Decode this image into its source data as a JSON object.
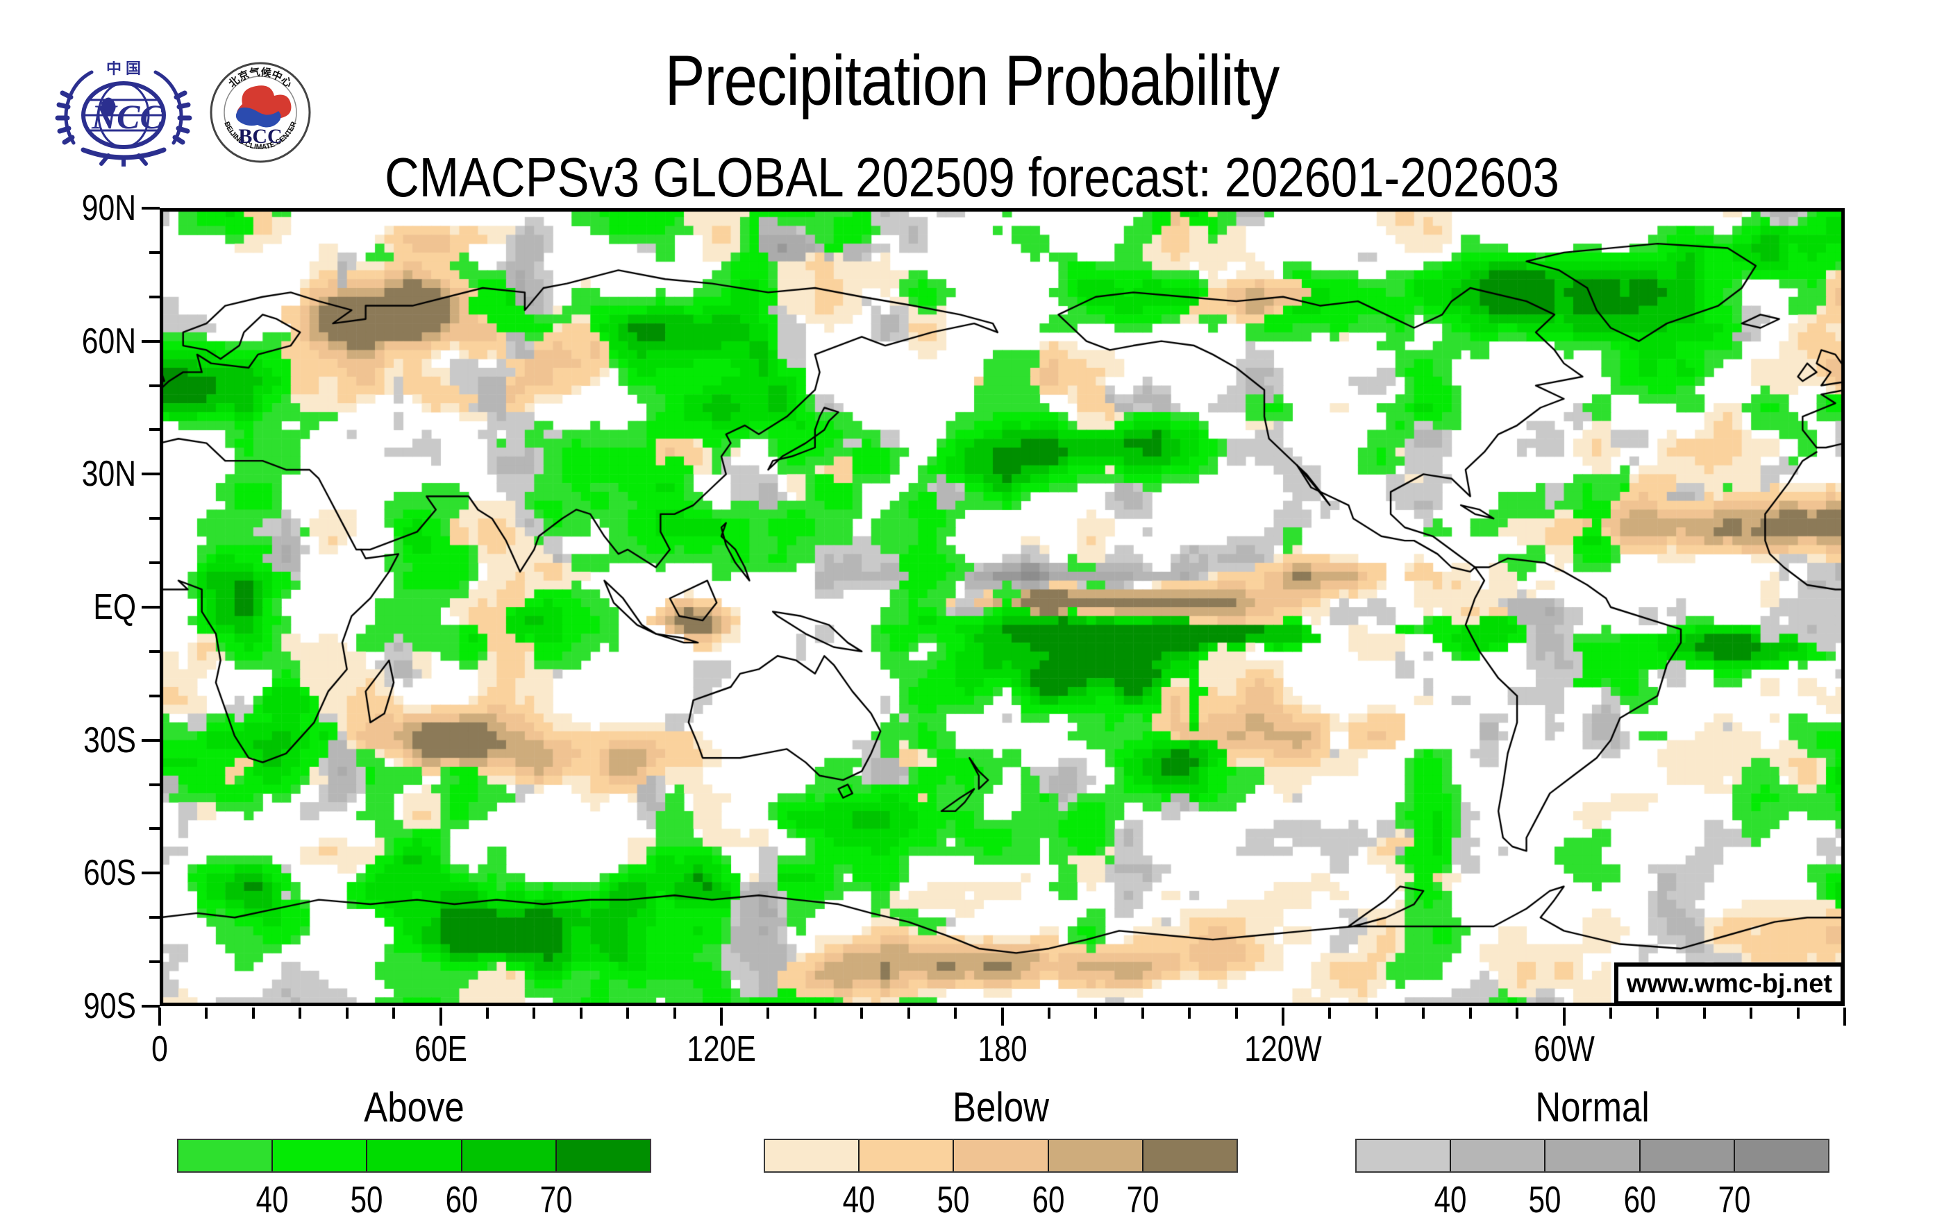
{
  "header": {
    "title": "Precipitation Probability",
    "subtitle": "CMACPSv3 GLOBAL 202509 forecast: 202601-202603"
  },
  "logos": {
    "ncc": {
      "country_text": "中 国",
      "acronym": "NCC"
    },
    "bcc": {
      "acronym": "BCC",
      "ring_top": "北京气候中心",
      "ring_bottom": "BEIJING CLIMATE CENTER"
    }
  },
  "map": {
    "watermark": "www.wmc-bj.net",
    "y_tick_labels": [
      "90N",
      "60N",
      "30N",
      "EQ",
      "30S",
      "60S",
      "90S"
    ],
    "x_tick_labels": [
      "0",
      "60E",
      "120E",
      "180",
      "120W",
      "60W"
    ],
    "background_color": "#FFFFFF",
    "coastline_color": "#000000"
  },
  "legend": {
    "sections": [
      {
        "title": "Above",
        "tick_labels": [
          "40",
          "50",
          "60",
          "70"
        ],
        "colors": [
          "#2EE02E",
          "#04EA04",
          "#00DC00",
          "#00C400",
          "#008F00"
        ]
      },
      {
        "title": "Below",
        "tick_labels": [
          "40",
          "50",
          "60",
          "70"
        ],
        "colors": [
          "#FAE9CC",
          "#FAD29D",
          "#F0C392",
          "#CEAC7C",
          "#8C7A58"
        ]
      },
      {
        "title": "Normal",
        "tick_labels": [
          "40",
          "50",
          "60",
          "70"
        ],
        "colors": [
          "#C9C9C9",
          "#B6B6B6",
          "#ABABAB",
          "#989898",
          "#8D8D8D"
        ]
      }
    ]
  },
  "chart_data": {
    "type": "heatmap",
    "title": "Precipitation Probability",
    "subtitle": "CMACPSv3 GLOBAL 202509 forecast: 202601-202603",
    "projection": "equirectangular global, lon 0 to 360, lat 90N to 90S",
    "x_ticks": [
      "0",
      "60E",
      "120E",
      "180",
      "120W",
      "60W"
    ],
    "y_ticks": [
      "90N",
      "60N",
      "30N",
      "EQ",
      "30S",
      "60S",
      "90S"
    ],
    "units": "probability (%)",
    "categories": [
      {
        "name": "Above",
        "bin_labels": [
          "<=40",
          "40-50",
          "50-60",
          "60-70",
          ">=70"
        ],
        "palette": [
          "#2EE02E",
          "#04EA04",
          "#00DC00",
          "#00C400",
          "#008F00"
        ]
      },
      {
        "name": "Below",
        "bin_labels": [
          "<=40",
          "40-50",
          "50-60",
          "60-70",
          ">=70"
        ],
        "palette": [
          "#FAE9CC",
          "#FAD29D",
          "#F0C392",
          "#CEAC7C",
          "#8C7A58"
        ]
      },
      {
        "name": "Normal",
        "bin_labels": [
          "<=40",
          "40-50",
          "50-60",
          "60-70",
          ">=70"
        ],
        "palette": [
          "#C9C9C9",
          "#B6B6B6",
          "#ABABAB",
          "#989898",
          "#8D8D8D"
        ]
      }
    ],
    "legend_position": "bottom",
    "grid": false,
    "watermark": "www.wmc-bj.net"
  }
}
